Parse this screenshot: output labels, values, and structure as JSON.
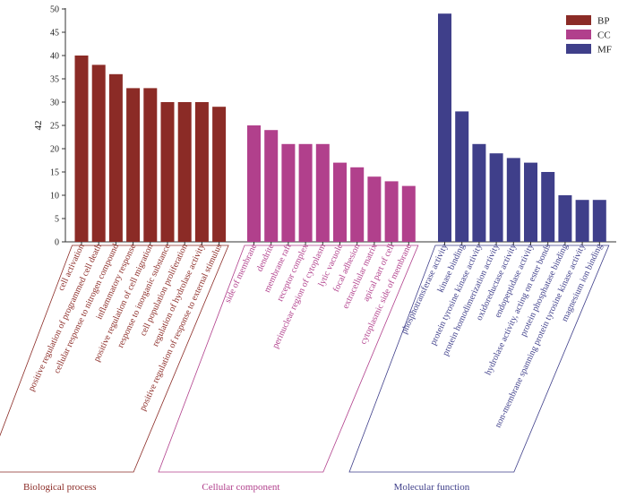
{
  "chart_data": {
    "type": "bar",
    "ylabel": "42",
    "ylim": [
      0,
      50
    ],
    "yticks": [
      0,
      5,
      10,
      15,
      20,
      25,
      30,
      35,
      40,
      45,
      50
    ],
    "grid": false,
    "legend_position": "top-right",
    "series": [
      {
        "name": "BP",
        "group_label": "Biological process",
        "color": "#8b2b26",
        "categories": [
          "cell activation",
          "positive regulation of programmed cell death",
          "cellular response to nitrogen compound",
          "inflammatory response",
          "positive regulation of cell migration",
          "response to inorganic substance",
          "cell population proliferation",
          "regulation of hydrolase activity",
          "positive regulation of response to external stimulus"
        ],
        "values": [
          40,
          38,
          36,
          33,
          33,
          30,
          30,
          30,
          29
        ]
      },
      {
        "name": "CC",
        "group_label": "Cellular component",
        "color": "#b1408c",
        "categories": [
          "side of membrane",
          "dendrite",
          "membrane raft",
          "receptor complex",
          "perinuclear region of cytoplasm",
          "lytic vacuole",
          "focal adhesion",
          "extracellular matrix",
          "apical part of cell",
          "cytoplasmic side of membrane"
        ],
        "values": [
          25,
          24,
          21,
          21,
          21,
          17,
          16,
          14,
          13,
          12
        ]
      },
      {
        "name": "MF",
        "group_label": "Molecular function",
        "color": "#3f3f8a",
        "categories": [
          "phosphotransferase activity",
          "kinase binding",
          "protein tyrosine kinase activity",
          "protein homodimerization activity",
          "oxidoreductase activity",
          "endopeptidase activity",
          "hydrolase activity, acting on ester bonds",
          "protein phosphatase binding",
          "non-membrane spanning protein tyrosine kinase activity",
          "magnesium ion binding"
        ],
        "values": [
          49,
          28,
          21,
          19,
          18,
          17,
          15,
          10,
          9,
          9
        ]
      }
    ]
  }
}
